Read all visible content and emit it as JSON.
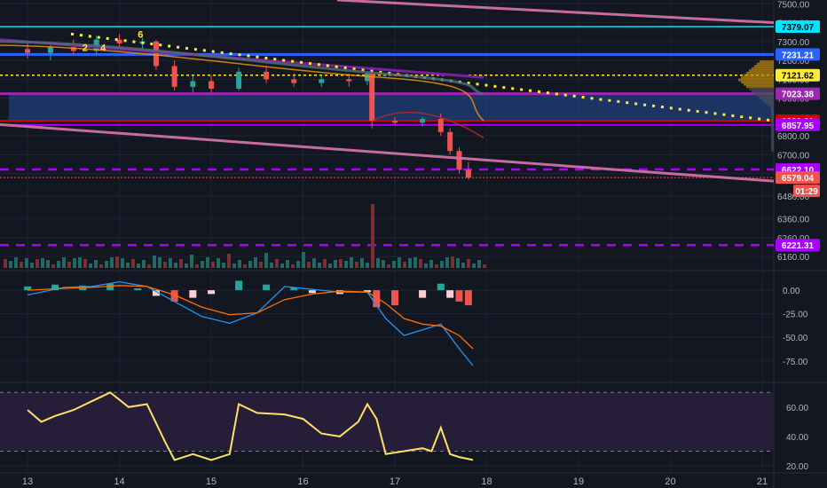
{
  "chart_data": [
    {
      "panel": "price",
      "type": "candlestick",
      "title": "",
      "price_axis": {
        "range": [
          6100,
          7520
        ],
        "ticks": [
          7500.0,
          7400.0,
          7300.0,
          7200.0,
          7100.0,
          7000.0,
          6900.0,
          6800.0,
          6700.0,
          6600.0,
          6480.0,
          6360.0,
          6260.0,
          6160.0
        ],
        "tick_labels": [
          "7500.00",
          "7400.00",
          "7300.00",
          "7200.00",
          "7100.00",
          "7000.00",
          "6900.00",
          "6800.00",
          "6700.00",
          "6600.00",
          "6480.00",
          "6360.00",
          "6260.00",
          "6160.00"
        ]
      },
      "candles": [
        {
          "x": 13.0,
          "o": 7260,
          "h": 7300,
          "l": 7210,
          "c": 7240
        },
        {
          "x": 13.25,
          "o": 7240,
          "h": 7285,
          "l": 7200,
          "c": 7270
        },
        {
          "x": 13.5,
          "o": 7270,
          "h": 7310,
          "l": 7230,
          "c": 7250
        },
        {
          "x": 13.75,
          "o": 7250,
          "h": 7330,
          "l": 7230,
          "c": 7310
        },
        {
          "x": 14.0,
          "o": 7310,
          "h": 7340,
          "l": 7270,
          "c": 7290
        },
        {
          "x": 14.25,
          "o": 7290,
          "h": 7320,
          "l": 7250,
          "c": 7300
        },
        {
          "x": 14.4,
          "o": 7300,
          "h": 7310,
          "l": 7150,
          "c": 7170
        },
        {
          "x": 14.6,
          "o": 7170,
          "h": 7200,
          "l": 7040,
          "c": 7060
        },
        {
          "x": 14.8,
          "o": 7060,
          "h": 7120,
          "l": 7030,
          "c": 7090
        },
        {
          "x": 15.0,
          "o": 7090,
          "h": 7120,
          "l": 7030,
          "c": 7050
        },
        {
          "x": 15.3,
          "o": 7050,
          "h": 7160,
          "l": 7040,
          "c": 7140
        },
        {
          "x": 15.6,
          "o": 7140,
          "h": 7170,
          "l": 7080,
          "c": 7100
        },
        {
          "x": 15.9,
          "o": 7100,
          "h": 7130,
          "l": 7060,
          "c": 7080
        },
        {
          "x": 16.2,
          "o": 7080,
          "h": 7120,
          "l": 7060,
          "c": 7100
        },
        {
          "x": 16.5,
          "o": 7100,
          "h": 7130,
          "l": 7060,
          "c": 7090
        },
        {
          "x": 16.7,
          "o": 7090,
          "h": 7140,
          "l": 7070,
          "c": 7130
        },
        {
          "x": 16.75,
          "o": 7130,
          "h": 7140,
          "l": 6840,
          "c": 6880
        },
        {
          "x": 17.0,
          "o": 6880,
          "h": 6900,
          "l": 6860,
          "c": 6870
        },
        {
          "x": 17.3,
          "o": 6870,
          "h": 6900,
          "l": 6850,
          "c": 6890
        },
        {
          "x": 17.5,
          "o": 6890,
          "h": 6920,
          "l": 6800,
          "c": 6820
        },
        {
          "x": 17.6,
          "o": 6820,
          "h": 6840,
          "l": 6700,
          "c": 6720
        },
        {
          "x": 17.7,
          "o": 6720,
          "h": 6740,
          "l": 6600,
          "c": 6620
        },
        {
          "x": 17.8,
          "o": 6620,
          "h": 6660,
          "l": 6570,
          "c": 6579.04
        }
      ],
      "price_labels": [
        {
          "text": "7379.07",
          "color": "#00e5ff",
          "text_color": "#000000"
        },
        {
          "text": "7231.21",
          "color": "#2962ff",
          "text_color": "#ffffff"
        },
        {
          "text": "7121.62",
          "color": "#ffeb3b",
          "text_color": "#000000"
        },
        {
          "text": "7023.38",
          "color": "#9c27b0",
          "text_color": "#ffffff"
        },
        {
          "text": "6880.21",
          "color": "#d50000",
          "text_color": "#ffffff"
        },
        {
          "text": "6857.95",
          "color": "#aa00ff",
          "text_color": "#ffffff"
        },
        {
          "text": "6622.10",
          "color": "#aa00ff",
          "text_color": "#ffffff"
        },
        {
          "text": "6579.04",
          "color": "#ef5350",
          "text_color": "#ffffff"
        },
        {
          "text": "01:29",
          "color": "#ef5350",
          "text_color": "#ffffff"
        },
        {
          "text": "6221.31",
          "color": "#aa00ff",
          "text_color": "#ffffff"
        }
      ],
      "annotations": [
        "2",
        "4",
        "6"
      ]
    },
    {
      "panel": "macd",
      "type": "histogram+line",
      "axis": {
        "range": [
          -95,
          18
        ],
        "tick_labels": [
          "0.00",
          "-25.00",
          "-50.00",
          "-75.00"
        ],
        "ticks": [
          0,
          -25,
          -50,
          -75
        ]
      },
      "histogram": [
        {
          "x": 13.0,
          "v": 4
        },
        {
          "x": 13.3,
          "v": 6
        },
        {
          "x": 13.6,
          "v": 5
        },
        {
          "x": 13.9,
          "v": 7
        },
        {
          "x": 14.2,
          "v": 2
        },
        {
          "x": 14.4,
          "v": -6
        },
        {
          "x": 14.6,
          "v": -12
        },
        {
          "x": 14.8,
          "v": -8
        },
        {
          "x": 15.0,
          "v": -4
        },
        {
          "x": 15.3,
          "v": 10
        },
        {
          "x": 15.6,
          "v": 6
        },
        {
          "x": 15.9,
          "v": 3
        },
        {
          "x": 16.1,
          "v": -3
        },
        {
          "x": 16.4,
          "v": -4
        },
        {
          "x": 16.7,
          "v": -2
        },
        {
          "x": 16.8,
          "v": -18
        },
        {
          "x": 17.0,
          "v": -16
        },
        {
          "x": 17.3,
          "v": -8
        },
        {
          "x": 17.5,
          "v": 7
        },
        {
          "x": 17.6,
          "v": -8
        },
        {
          "x": 17.7,
          "v": -12
        },
        {
          "x": 17.8,
          "v": -16
        }
      ],
      "macd_line": {
        "x": [
          13.0,
          13.4,
          13.7,
          14.0,
          14.3,
          14.6,
          14.9,
          15.2,
          15.5,
          15.8,
          16.1,
          16.4,
          16.7,
          16.9,
          17.1,
          17.3,
          17.5,
          17.7,
          17.85
        ],
        "y": [
          -5,
          3,
          4,
          9,
          4,
          -12,
          -28,
          -35,
          -24,
          4,
          1,
          -2,
          -2,
          -30,
          -48,
          -42,
          -36,
          -62,
          -80
        ]
      },
      "signal_line": {
        "x": [
          13.0,
          13.4,
          13.7,
          14.0,
          14.3,
          14.6,
          14.9,
          15.2,
          15.5,
          15.8,
          16.1,
          16.4,
          16.7,
          16.9,
          17.1,
          17.3,
          17.5,
          17.7,
          17.85
        ],
        "y": [
          0,
          2,
          3,
          5,
          4,
          -5,
          -18,
          -26,
          -24,
          -10,
          -4,
          -1,
          -2,
          -14,
          -30,
          -36,
          -38,
          -48,
          -62
        ]
      }
    },
    {
      "panel": "rsi",
      "type": "line",
      "axis": {
        "range": [
          17,
          75
        ],
        "ticks": [
          60,
          40,
          20
        ],
        "tick_labels": [
          "60.00",
          "40.00",
          "20.00"
        ]
      },
      "bands": [
        70,
        30
      ],
      "x": [
        13.0,
        13.15,
        13.3,
        13.5,
        13.7,
        13.9,
        14.1,
        14.3,
        14.5,
        14.6,
        14.8,
        15.0,
        15.2,
        15.3,
        15.5,
        15.8,
        16.0,
        16.2,
        16.4,
        16.6,
        16.7,
        16.8,
        16.9,
        17.1,
        17.3,
        17.4,
        17.5,
        17.6,
        17.7,
        17.85
      ],
      "y": [
        58,
        50,
        54,
        58,
        64,
        70,
        60,
        62,
        36,
        24,
        28,
        24,
        28,
        62,
        56,
        55,
        52,
        42,
        40,
        50,
        62,
        52,
        28,
        30,
        32,
        30,
        46,
        28,
        26,
        24
      ]
    },
    {
      "panel": "time_axis",
      "tick_labels": [
        "13",
        "14",
        "15",
        "16",
        "17",
        "18",
        "19",
        "20",
        "21"
      ],
      "ticks": [
        13,
        14,
        15,
        16,
        17,
        18,
        19,
        20,
        21
      ]
    }
  ],
  "colors": {
    "background": "#131722",
    "grid": "#1f2433",
    "up": "#26a69a",
    "down": "#ef5350",
    "volume_up": "#1f6b64",
    "volume_down": "#7a2f30",
    "macd_line": "#2196f3",
    "signal_line": "#ff6d00",
    "rsi_line": "#ffe066",
    "rsi_band": "#2a1f3d",
    "trendline_pink": "#c76c9f",
    "dotted_yellow": "#ffeb3b",
    "supply_zone": "#1f3f7a",
    "dashed_purple": "#aa00ff",
    "axis_text": "#b2b5be"
  }
}
